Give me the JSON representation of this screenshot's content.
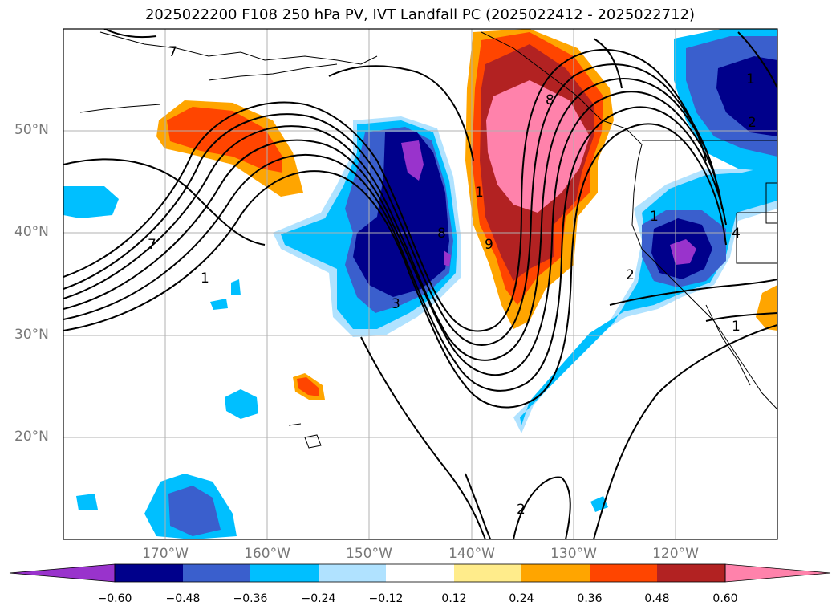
{
  "title": "2025022200 F108 250 hPa PV, IVT Landfall PC (2025022412 - 2025022712)",
  "latitude_labels": [
    "50°N",
    "40°N",
    "30°N",
    "20°N"
  ],
  "longitude_labels": [
    "170°W",
    "160°W",
    "150°W",
    "140°W",
    "130°W",
    "120°W"
  ],
  "colorbar": {
    "ticks": [
      "−0.60",
      "−0.48",
      "−0.36",
      "−0.24",
      "−0.12",
      "0.12",
      "0.24",
      "0.36",
      "0.48",
      "0.60"
    ],
    "colors": [
      "#9933cc",
      "#00008b",
      "#3a5fcd",
      "#00bfff",
      "#b0e2ff",
      "#ffffff",
      "#ffec8b",
      "#ffa500",
      "#ff4500",
      "#b22222",
      "#ff82ab"
    ]
  },
  "contour_labels": [
    "7",
    "7",
    "1",
    "3",
    "8",
    "1",
    "9",
    "8",
    "1",
    "2",
    "1",
    "4",
    "2",
    "1",
    "2"
  ]
}
